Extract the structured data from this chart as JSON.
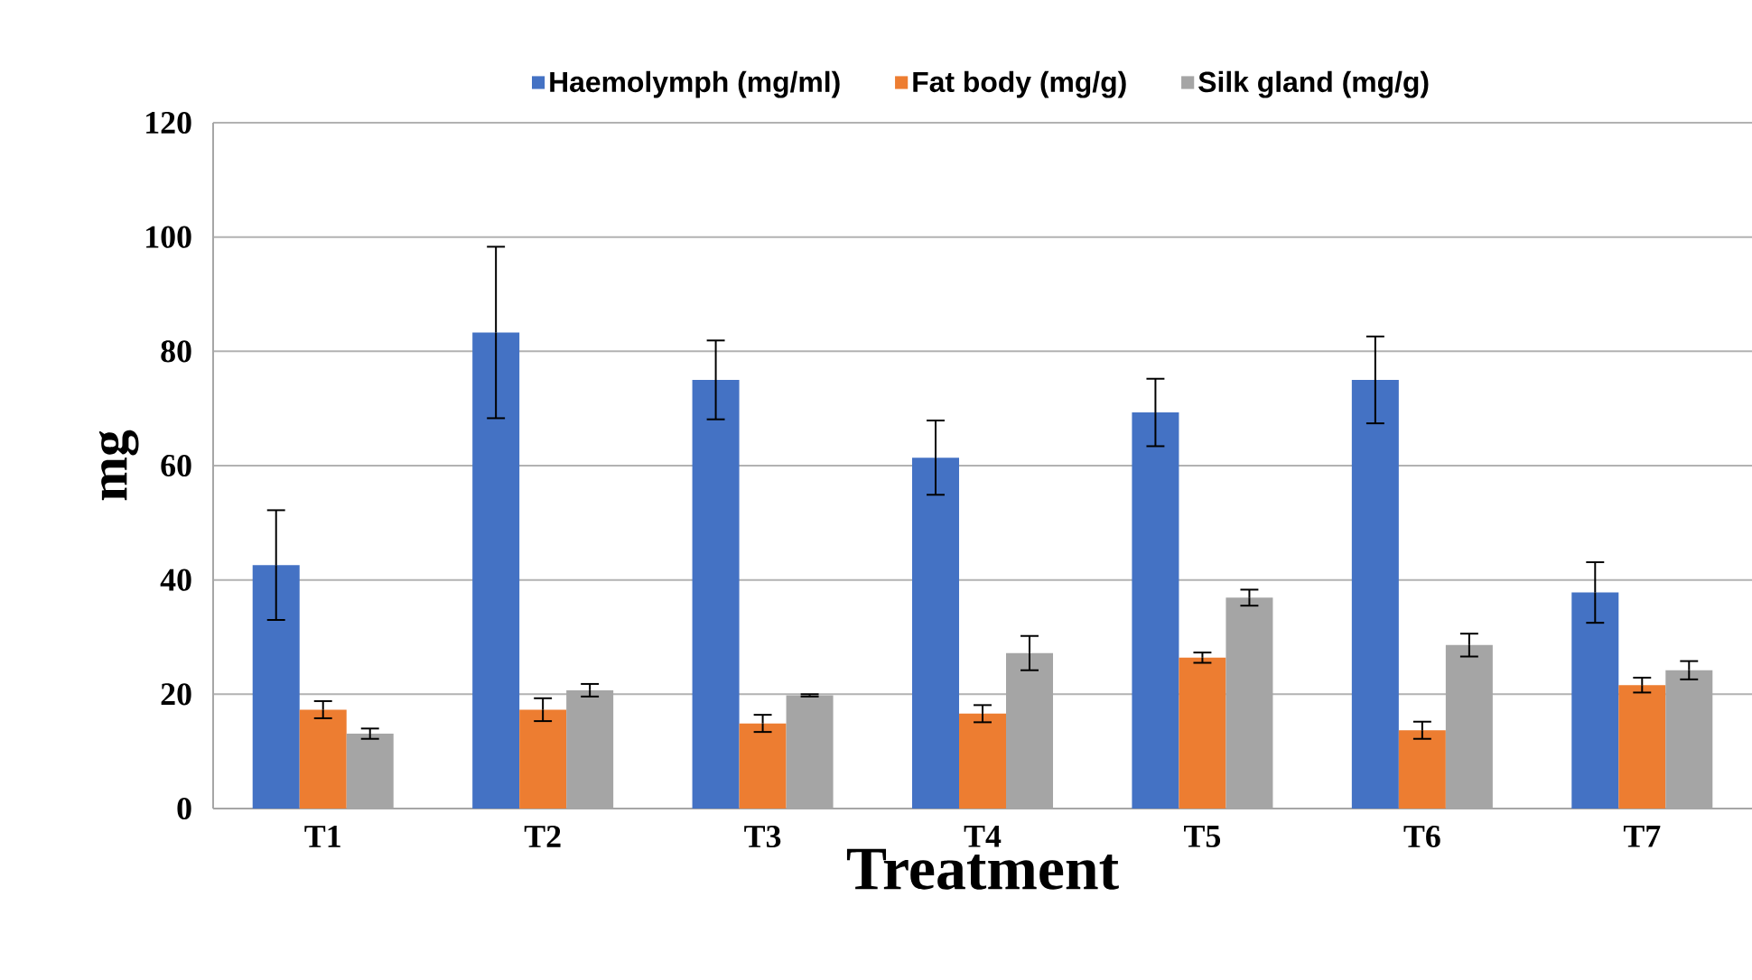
{
  "chart_data": {
    "type": "bar",
    "xlabel": "Treatment",
    "ylabel": "mg",
    "categories": [
      "T1",
      "T2",
      "T3",
      "T4",
      "T5",
      "T6",
      "T7"
    ],
    "series": [
      {
        "name": "Haemolymph (mg/ml)",
        "color": "#4472c4",
        "values": [
          42.6,
          83.3,
          75.0,
          61.4,
          69.3,
          75.0,
          37.8
        ],
        "errors": [
          9.6,
          15.0,
          6.9,
          6.5,
          5.9,
          7.6,
          5.3
        ]
      },
      {
        "name": "Fat body (mg/g)",
        "color": "#ed7d31",
        "values": [
          17.3,
          17.3,
          14.9,
          16.6,
          26.4,
          13.7,
          21.6
        ],
        "errors": [
          1.5,
          2.0,
          1.5,
          1.5,
          0.9,
          1.5,
          1.3
        ]
      },
      {
        "name": "Silk gland (mg/g)",
        "color": "#a5a5a5",
        "values": [
          13.1,
          20.7,
          19.8,
          27.2,
          36.9,
          28.6,
          24.2
        ],
        "errors": [
          0.9,
          1.1,
          0.2,
          3.0,
          1.4,
          2.0,
          1.6
        ]
      }
    ],
    "ylim": [
      0,
      120
    ],
    "yticks": [
      0,
      20,
      40,
      60,
      80,
      100,
      120
    ],
    "grid": "y",
    "legend": "top"
  }
}
